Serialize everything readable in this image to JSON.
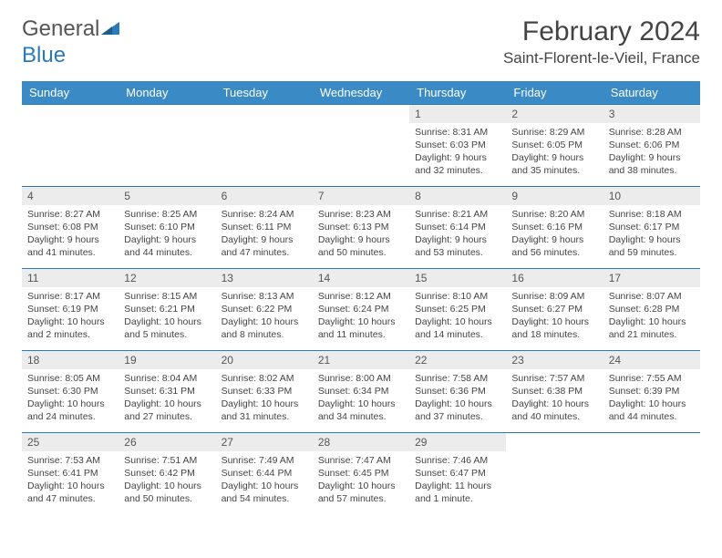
{
  "brand": {
    "part1": "General",
    "part2": "Blue"
  },
  "title": "February 2024",
  "location": "Saint-Florent-le-Vieil, France",
  "colors": {
    "header_bg": "#3a8ac6",
    "header_text": "#ffffff",
    "daynum_bg": "#ececec",
    "border": "#2a7ab9",
    "text": "#444444",
    "brand_gray": "#555555",
    "brand_blue": "#2a7ab9"
  },
  "days_of_week": [
    "Sunday",
    "Monday",
    "Tuesday",
    "Wednesday",
    "Thursday",
    "Friday",
    "Saturday"
  ],
  "weeks": [
    [
      null,
      null,
      null,
      null,
      {
        "n": "1",
        "sr": "8:31 AM",
        "ss": "6:03 PM",
        "dl": "9 hours and 32 minutes."
      },
      {
        "n": "2",
        "sr": "8:29 AM",
        "ss": "6:05 PM",
        "dl": "9 hours and 35 minutes."
      },
      {
        "n": "3",
        "sr": "8:28 AM",
        "ss": "6:06 PM",
        "dl": "9 hours and 38 minutes."
      }
    ],
    [
      {
        "n": "4",
        "sr": "8:27 AM",
        "ss": "6:08 PM",
        "dl": "9 hours and 41 minutes."
      },
      {
        "n": "5",
        "sr": "8:25 AM",
        "ss": "6:10 PM",
        "dl": "9 hours and 44 minutes."
      },
      {
        "n": "6",
        "sr": "8:24 AM",
        "ss": "6:11 PM",
        "dl": "9 hours and 47 minutes."
      },
      {
        "n": "7",
        "sr": "8:23 AM",
        "ss": "6:13 PM",
        "dl": "9 hours and 50 minutes."
      },
      {
        "n": "8",
        "sr": "8:21 AM",
        "ss": "6:14 PM",
        "dl": "9 hours and 53 minutes."
      },
      {
        "n": "9",
        "sr": "8:20 AM",
        "ss": "6:16 PM",
        "dl": "9 hours and 56 minutes."
      },
      {
        "n": "10",
        "sr": "8:18 AM",
        "ss": "6:17 PM",
        "dl": "9 hours and 59 minutes."
      }
    ],
    [
      {
        "n": "11",
        "sr": "8:17 AM",
        "ss": "6:19 PM",
        "dl": "10 hours and 2 minutes."
      },
      {
        "n": "12",
        "sr": "8:15 AM",
        "ss": "6:21 PM",
        "dl": "10 hours and 5 minutes."
      },
      {
        "n": "13",
        "sr": "8:13 AM",
        "ss": "6:22 PM",
        "dl": "10 hours and 8 minutes."
      },
      {
        "n": "14",
        "sr": "8:12 AM",
        "ss": "6:24 PM",
        "dl": "10 hours and 11 minutes."
      },
      {
        "n": "15",
        "sr": "8:10 AM",
        "ss": "6:25 PM",
        "dl": "10 hours and 14 minutes."
      },
      {
        "n": "16",
        "sr": "8:09 AM",
        "ss": "6:27 PM",
        "dl": "10 hours and 18 minutes."
      },
      {
        "n": "17",
        "sr": "8:07 AM",
        "ss": "6:28 PM",
        "dl": "10 hours and 21 minutes."
      }
    ],
    [
      {
        "n": "18",
        "sr": "8:05 AM",
        "ss": "6:30 PM",
        "dl": "10 hours and 24 minutes."
      },
      {
        "n": "19",
        "sr": "8:04 AM",
        "ss": "6:31 PM",
        "dl": "10 hours and 27 minutes."
      },
      {
        "n": "20",
        "sr": "8:02 AM",
        "ss": "6:33 PM",
        "dl": "10 hours and 31 minutes."
      },
      {
        "n": "21",
        "sr": "8:00 AM",
        "ss": "6:34 PM",
        "dl": "10 hours and 34 minutes."
      },
      {
        "n": "22",
        "sr": "7:58 AM",
        "ss": "6:36 PM",
        "dl": "10 hours and 37 minutes."
      },
      {
        "n": "23",
        "sr": "7:57 AM",
        "ss": "6:38 PM",
        "dl": "10 hours and 40 minutes."
      },
      {
        "n": "24",
        "sr": "7:55 AM",
        "ss": "6:39 PM",
        "dl": "10 hours and 44 minutes."
      }
    ],
    [
      {
        "n": "25",
        "sr": "7:53 AM",
        "ss": "6:41 PM",
        "dl": "10 hours and 47 minutes."
      },
      {
        "n": "26",
        "sr": "7:51 AM",
        "ss": "6:42 PM",
        "dl": "10 hours and 50 minutes."
      },
      {
        "n": "27",
        "sr": "7:49 AM",
        "ss": "6:44 PM",
        "dl": "10 hours and 54 minutes."
      },
      {
        "n": "28",
        "sr": "7:47 AM",
        "ss": "6:45 PM",
        "dl": "10 hours and 57 minutes."
      },
      {
        "n": "29",
        "sr": "7:46 AM",
        "ss": "6:47 PM",
        "dl": "11 hours and 1 minute."
      },
      null,
      null
    ]
  ],
  "labels": {
    "sunrise": "Sunrise: ",
    "sunset": "Sunset: ",
    "daylight": "Daylight: "
  }
}
